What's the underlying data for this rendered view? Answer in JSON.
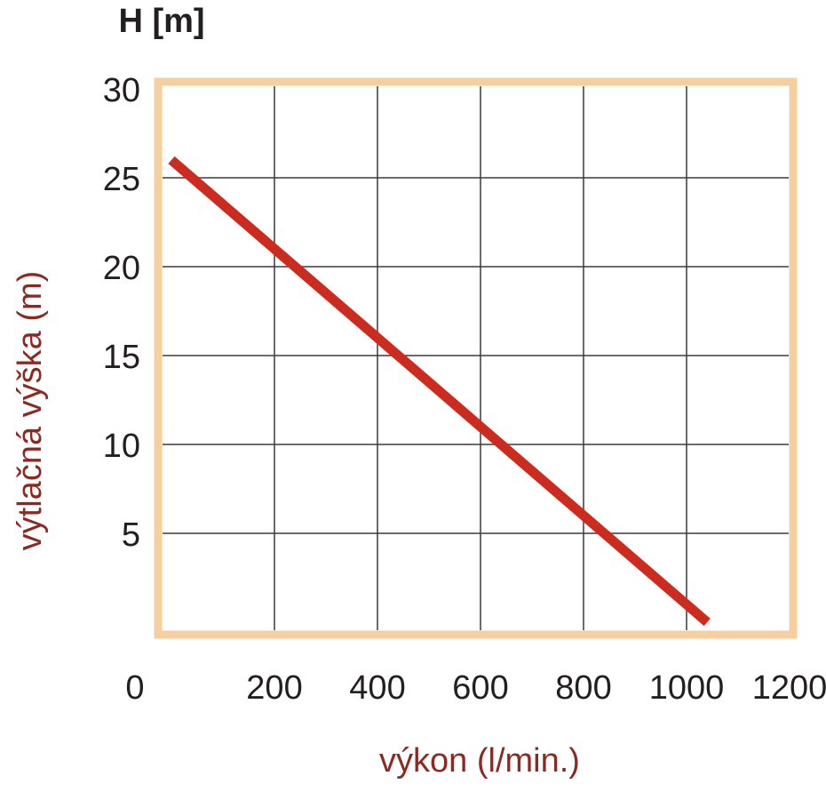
{
  "chart_data": {
    "type": "line",
    "y_unit_label": "H [m]",
    "x_label": "výkon (l/min.)",
    "y_label": "výtlačná výška (m)",
    "series": [
      {
        "name": "H",
        "color": "#cc2b1f",
        "x": [
          0,
          1040
        ],
        "values": [
          26,
          0
        ]
      }
    ],
    "xlim": [
      0,
      1200
    ],
    "xticks": [
      0,
      200,
      400,
      600,
      800,
      1000,
      1200
    ],
    "ylim": [
      0,
      30
    ],
    "yticks": [
      5,
      10,
      15,
      20,
      25,
      30
    ],
    "grid": true,
    "frame_color": "#f5cf9f"
  }
}
